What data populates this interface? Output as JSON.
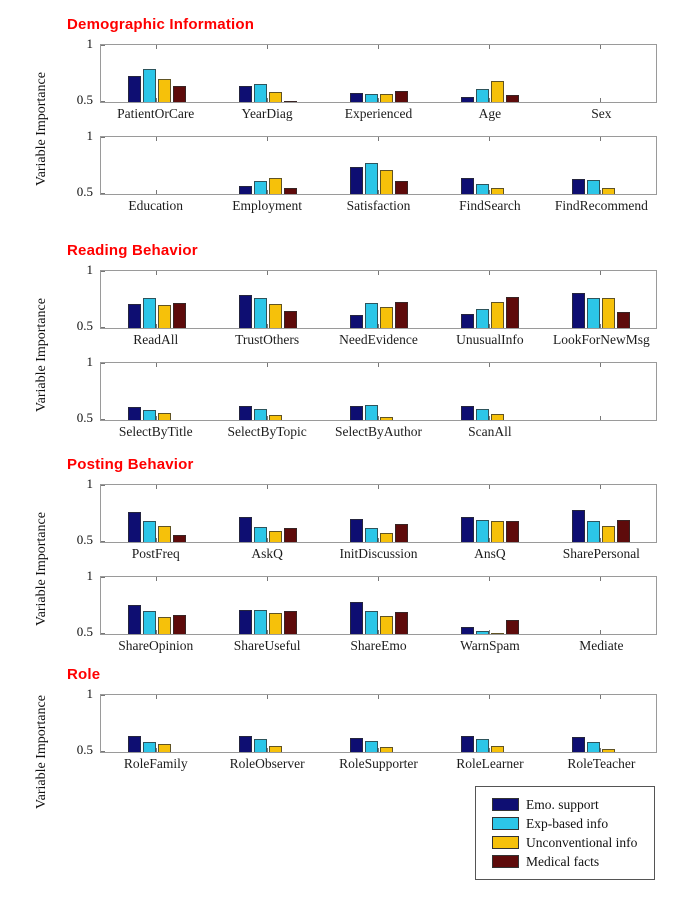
{
  "figure": {
    "ylabel": "Variable Importance",
    "ytick_top": "1",
    "ytick_bottom": "0.5",
    "heading_color": "#ff0000",
    "axis_color": "#9a9a9a"
  },
  "legend": {
    "position": "bottom-right",
    "items": [
      {
        "label": "Emo. support",
        "color": "#0e0e72"
      },
      {
        "label": "Exp-based info",
        "color": "#2cc6e8"
      },
      {
        "label": "Unconventional info",
        "color": "#f6c10a"
      },
      {
        "label": "Medical facts",
        "color": "#5e0b0b"
      }
    ]
  },
  "chart_data": [
    {
      "type": "bar",
      "title": "Demographic Information",
      "ylabel": "Variable Importance",
      "ylim": [
        0.5,
        1
      ],
      "yticks": [
        0.5,
        1
      ],
      "series": [
        "Emo. support",
        "Exp-based info",
        "Unconventional info",
        "Medical facts"
      ],
      "rows": [
        {
          "groups": [
            {
              "label": "PatientOrCare",
              "values": [
                0.73,
                0.79,
                0.7,
                0.64
              ]
            },
            {
              "label": "YearDiag",
              "values": [
                0.64,
                0.66,
                0.59,
                0.51
              ]
            },
            {
              "label": "Experienced",
              "values": [
                0.58,
                0.57,
                0.57,
                0.6
              ]
            },
            {
              "label": "Age",
              "values": [
                0.54,
                0.61,
                0.68,
                0.56
              ]
            },
            {
              "label": "Sex",
              "values": [
                0.5,
                0.5,
                0.5,
                0.5
              ]
            }
          ]
        },
        {
          "groups": [
            {
              "label": "Education",
              "values": [
                0.5,
                0.5,
                0.5,
                0.5
              ]
            },
            {
              "label": "Employment",
              "values": [
                0.57,
                0.61,
                0.64,
                0.55
              ]
            },
            {
              "label": "Satisfaction",
              "values": [
                0.74,
                0.77,
                0.71,
                0.61
              ]
            },
            {
              "label": "FindSearch",
              "values": [
                0.64,
                0.59,
                0.55,
                0.5
              ]
            },
            {
              "label": "FindRecommend",
              "values": [
                0.63,
                0.62,
                0.55,
                0.5
              ]
            }
          ]
        }
      ]
    },
    {
      "type": "bar",
      "title": "Reading Behavior",
      "ylabel": "Variable Importance",
      "ylim": [
        0.5,
        1
      ],
      "yticks": [
        0.5,
        1
      ],
      "series": [
        "Emo. support",
        "Exp-based info",
        "Unconventional info",
        "Medical facts"
      ],
      "rows": [
        {
          "groups": [
            {
              "label": "ReadAll",
              "values": [
                0.71,
                0.76,
                0.7,
                0.72
              ]
            },
            {
              "label": "TrustOthers",
              "values": [
                0.79,
                0.76,
                0.71,
                0.65
              ]
            },
            {
              "label": "NeedEvidence",
              "values": [
                0.61,
                0.72,
                0.68,
                0.73
              ]
            },
            {
              "label": "UnusualInfo",
              "values": [
                0.62,
                0.67,
                0.73,
                0.77
              ]
            },
            {
              "label": "LookForNewMsg",
              "values": [
                0.81,
                0.76,
                0.76,
                0.64
              ]
            }
          ]
        },
        {
          "groups": [
            {
              "label": "SelectByTitle",
              "values": [
                0.61,
                0.59,
                0.56,
                0.5
              ]
            },
            {
              "label": "SelectByTopic",
              "values": [
                0.62,
                0.6,
                0.54,
                0.5
              ]
            },
            {
              "label": "SelectByAuthor",
              "values": [
                0.62,
                0.63,
                0.53,
                0.5
              ]
            },
            {
              "label": "ScanAll",
              "values": [
                0.62,
                0.6,
                0.55,
                0.5
              ]
            },
            {
              "label": "",
              "values": [
                0.5,
                0.5,
                0.5,
                0.5
              ]
            }
          ]
        }
      ]
    },
    {
      "type": "bar",
      "title": "Posting Behavior",
      "ylabel": "Variable Importance",
      "ylim": [
        0.5,
        1
      ],
      "yticks": [
        0.5,
        1
      ],
      "series": [
        "Emo. support",
        "Exp-based info",
        "Unconventional info",
        "Medical facts"
      ],
      "rows": [
        {
          "groups": [
            {
              "label": "PostFreq",
              "values": [
                0.76,
                0.68,
                0.64,
                0.56
              ]
            },
            {
              "label": "AskQ",
              "values": [
                0.72,
                0.63,
                0.6,
                0.62
              ]
            },
            {
              "label": "InitDiscussion",
              "values": [
                0.7,
                0.62,
                0.58,
                0.66
              ]
            },
            {
              "label": "AnsQ",
              "values": [
                0.72,
                0.69,
                0.68,
                0.68
              ]
            },
            {
              "label": "SharePersonal",
              "values": [
                0.78,
                0.68,
                0.64,
                0.69
              ]
            }
          ]
        },
        {
          "groups": [
            {
              "label": "ShareOpinion",
              "values": [
                0.75,
                0.7,
                0.65,
                0.67
              ]
            },
            {
              "label": "ShareUseful",
              "values": [
                0.71,
                0.71,
                0.68,
                0.7
              ]
            },
            {
              "label": "ShareEmo",
              "values": [
                0.78,
                0.7,
                0.66,
                0.69
              ]
            },
            {
              "label": "WarnSpam",
              "values": [
                0.56,
                0.53,
                0.51,
                0.62
              ]
            },
            {
              "label": "Mediate",
              "values": [
                0.5,
                0.5,
                0.5,
                0.5
              ]
            }
          ]
        }
      ]
    },
    {
      "type": "bar",
      "title": "Role",
      "ylabel": "Variable Importance",
      "ylim": [
        0.5,
        1
      ],
      "yticks": [
        0.5,
        1
      ],
      "series": [
        "Emo. support",
        "Exp-based info",
        "Unconventional info",
        "Medical facts"
      ],
      "rows": [
        {
          "groups": [
            {
              "label": "RoleFamily",
              "values": [
                0.64,
                0.59,
                0.57,
                0.5
              ]
            },
            {
              "label": "RoleObserver",
              "values": [
                0.64,
                0.61,
                0.55,
                0.5
              ]
            },
            {
              "label": "RoleSupporter",
              "values": [
                0.62,
                0.6,
                0.54,
                0.5
              ]
            },
            {
              "label": "RoleLearner",
              "values": [
                0.64,
                0.61,
                0.55,
                0.5
              ]
            },
            {
              "label": "RoleTeacher",
              "values": [
                0.63,
                0.59,
                0.53,
                0.5
              ]
            }
          ]
        }
      ]
    }
  ]
}
